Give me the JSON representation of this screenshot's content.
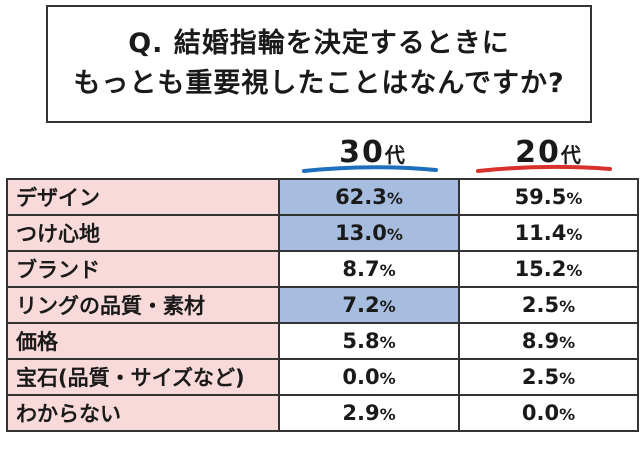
{
  "question": {
    "line1": "Q. 結婚指輪を決定するときに",
    "line2": "もっとも重要視したことはなんですか?"
  },
  "colors": {
    "label_bg": "#f9dada",
    "highlight_bg": "#a7bde0",
    "underline_30s": "#1f6fbf",
    "underline_20s": "#d9312b"
  },
  "chart_data": {
    "type": "table",
    "series": [
      {
        "name": "30代",
        "num": "30",
        "suffix": "代",
        "values": [
          62.3,
          13.0,
          8.7,
          7.2,
          5.8,
          0.0,
          2.9
        ]
      },
      {
        "name": "20代",
        "num": "20",
        "suffix": "代",
        "values": [
          59.5,
          11.4,
          15.2,
          2.5,
          8.9,
          2.5,
          0.0
        ]
      }
    ],
    "categories": [
      "デザイン",
      "つけ心地",
      "ブランド",
      "リングの品質・素材",
      "価格",
      "宝石(品質・サイズなど)",
      "わからない"
    ],
    "unit": "%",
    "highlighted_30s_rows": [
      0,
      1,
      3
    ]
  }
}
